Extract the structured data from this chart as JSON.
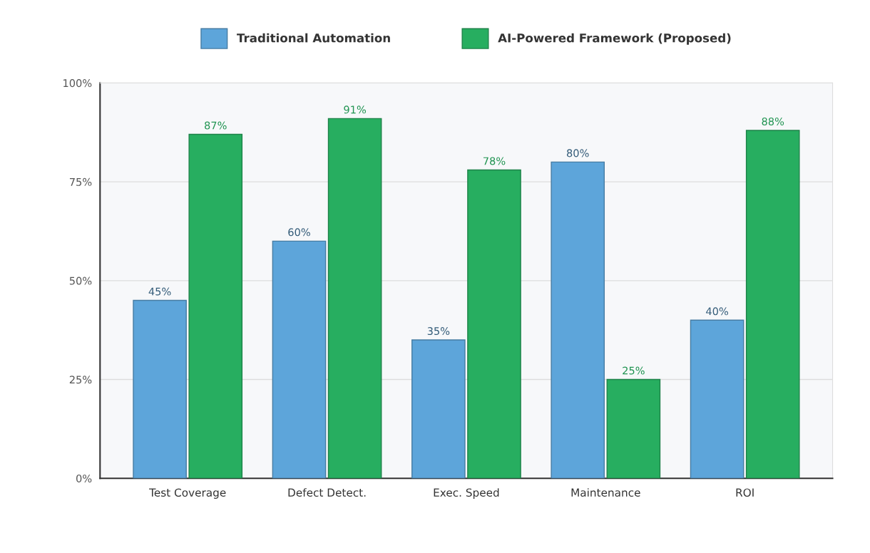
{
  "chart_data": {
    "type": "bar",
    "categories": [
      "Test Coverage",
      "Defect Detect.",
      "Exec. Speed",
      "Maintenance",
      "ROI"
    ],
    "series": [
      {
        "name": "Traditional Automation",
        "color": "#5da5da",
        "values": [
          45,
          60,
          35,
          80,
          40
        ],
        "value_labels": [
          "45%",
          "60%",
          "35%",
          "80%",
          "40%"
        ]
      },
      {
        "name": "AI-Powered Framework (Proposed)",
        "color": "#27ae60",
        "values": [
          87,
          91,
          78,
          25,
          88
        ],
        "value_labels": [
          "87%",
          "91%",
          "78%",
          "25%",
          "88%"
        ]
      }
    ],
    "ylim": [
      0,
      100
    ],
    "yticks": [
      {
        "value": 0,
        "label": "0%"
      },
      {
        "value": 25,
        "label": "25%"
      },
      {
        "value": 50,
        "label": "50%"
      },
      {
        "value": 75,
        "label": "75%"
      },
      {
        "value": 100,
        "label": "100%"
      }
    ],
    "grid": "y",
    "legend": "top"
  }
}
